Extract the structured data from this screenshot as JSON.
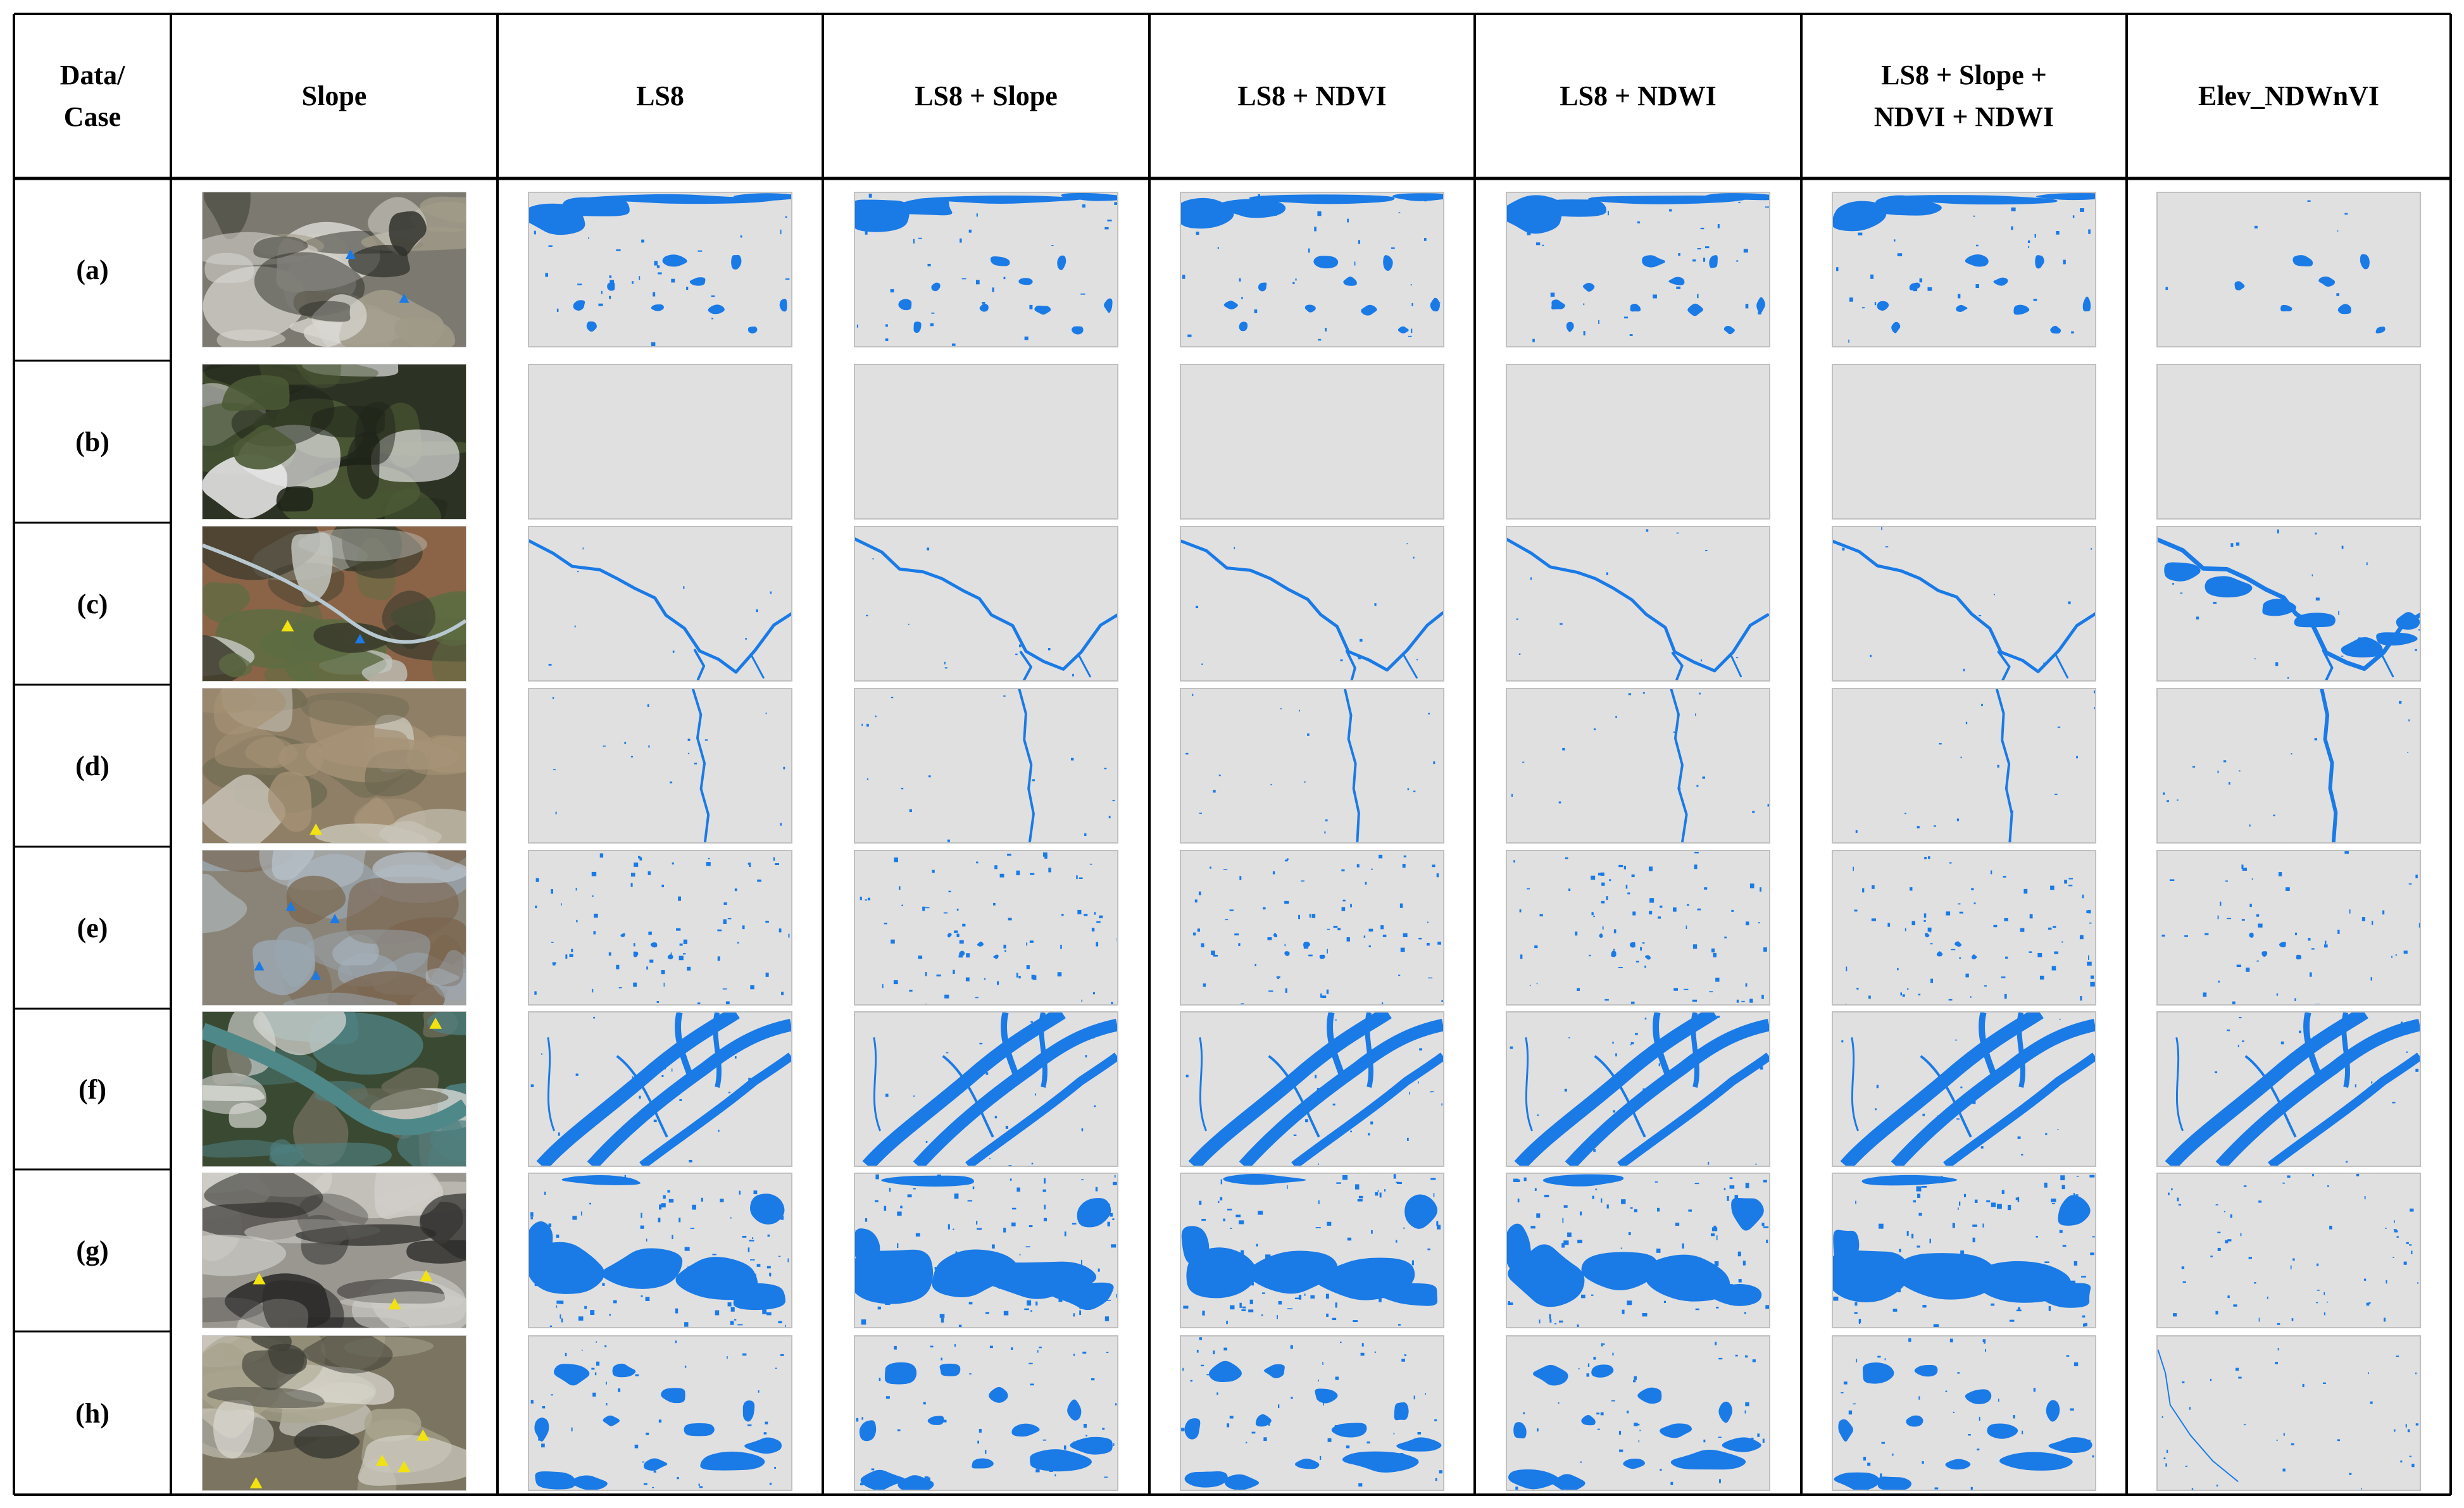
{
  "table": {
    "columns": [
      "Data/\nCase",
      "Slope",
      "LS8",
      "LS8 + Slope",
      "LS8 + NDVI",
      "LS8 + NDWI",
      "LS8 + Slope +\nNDVI + NDWI",
      "Elev_NDWnVI"
    ],
    "rows": [
      {
        "label": "(a)"
      },
      {
        "label": "(b)"
      },
      {
        "label": "(c)"
      },
      {
        "label": "(d)"
      },
      {
        "label": "(e)"
      },
      {
        "label": "(f)"
      },
      {
        "label": "(g)"
      },
      {
        "label": "(h)"
      }
    ]
  },
  "colors": {
    "water": "#1a7ae6",
    "background_map": "#e0e0e0",
    "marker": "#f2e20f",
    "grid": "#000000"
  }
}
